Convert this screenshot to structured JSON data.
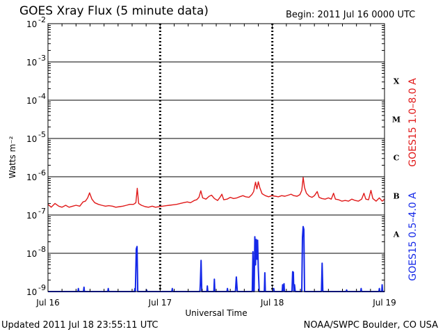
{
  "title": "GOES Xray Flux (5 minute data)",
  "begin": "Begin:  2011 Jul 16 0000 UTC",
  "updated": "Updated 2011 Jul 18 23:55:11 UTC",
  "credit": "NOAA/SWPC Boulder, CO USA",
  "chart_data": {
    "type": "line",
    "title": "GOES Xray Flux (5 minute data)",
    "xlabel": "Universal Time",
    "ylabel": "Watts m⁻²",
    "yscale": "log",
    "ylim": [
      1e-09,
      0.01
    ],
    "xlim": [
      0,
      72
    ],
    "x_unit": "hours since 2011 Jul 16 0000 UTC",
    "x_ticks": [
      {
        "x": 0,
        "label": "Jul 16"
      },
      {
        "x": 24,
        "label": "Jul 17"
      },
      {
        "x": 48,
        "label": "Jul 18"
      },
      {
        "x": 72,
        "label": "Jul 19"
      }
    ],
    "y_ticks": [
      {
        "exp": -9,
        "label": "10",
        "sup": "-9"
      },
      {
        "exp": -8,
        "label": "10",
        "sup": "-8"
      },
      {
        "exp": -7,
        "label": "10",
        "sup": "-7"
      },
      {
        "exp": -6,
        "label": "10",
        "sup": "-6"
      },
      {
        "exp": -5,
        "label": "10",
        "sup": "-5"
      },
      {
        "exp": -4,
        "label": "10",
        "sup": "-4"
      },
      {
        "exp": -3,
        "label": "10",
        "sup": "-3"
      },
      {
        "exp": -2,
        "label": "10",
        "sup": "-2"
      }
    ],
    "flare_classes": [
      {
        "label": "A",
        "exp": -7.5
      },
      {
        "label": "B",
        "exp": -6.5
      },
      {
        "label": "C",
        "exp": -5.5
      },
      {
        "label": "M",
        "exp": -4.5
      },
      {
        "label": "X",
        "exp": -3.5
      }
    ],
    "grid": true,
    "series": [
      {
        "name": "GOES15 1.0–8.0 A",
        "color": "#e01818",
        "points": [
          [
            0,
            1.9e-07
          ],
          [
            0.7,
            1.6e-07
          ],
          [
            1.5,
            2e-07
          ],
          [
            2.3,
            1.7e-07
          ],
          [
            3,
            1.6e-07
          ],
          [
            3.8,
            1.8e-07
          ],
          [
            4.5,
            1.6e-07
          ],
          [
            5.3,
            1.7e-07
          ],
          [
            6,
            1.8e-07
          ],
          [
            6.8,
            1.7e-07
          ],
          [
            7.5,
            2.2e-07
          ],
          [
            8,
            2.3e-07
          ],
          [
            8.5,
            2.8e-07
          ],
          [
            8.9,
            3.8e-07
          ],
          [
            9.4,
            2.6e-07
          ],
          [
            10,
            2.1e-07
          ],
          [
            10.8,
            1.9e-07
          ],
          [
            11.5,
            1.8e-07
          ],
          [
            12.3,
            1.7e-07
          ],
          [
            13,
            1.75e-07
          ],
          [
            13.8,
            1.7e-07
          ],
          [
            14.5,
            1.6e-07
          ],
          [
            15.3,
            1.65e-07
          ],
          [
            16,
            1.7e-07
          ],
          [
            16.8,
            1.8e-07
          ],
          [
            17.5,
            1.9e-07
          ],
          [
            18.3,
            1.9e-07
          ],
          [
            18.8,
            2.1e-07
          ],
          [
            19.1,
            5e-07
          ],
          [
            19.4,
            2e-07
          ],
          [
            20,
            1.8e-07
          ],
          [
            20.8,
            1.65e-07
          ],
          [
            21.5,
            1.6e-07
          ],
          [
            22.3,
            1.7e-07
          ],
          [
            23,
            1.6e-07
          ],
          [
            23.8,
            1.65e-07
          ],
          [
            24.5,
            1.7e-07
          ],
          [
            25.3,
            1.75e-07
          ],
          [
            26,
            1.8e-07
          ],
          [
            26.8,
            1.85e-07
          ],
          [
            27.5,
            1.9e-07
          ],
          [
            28.3,
            2e-07
          ],
          [
            29,
            2.1e-07
          ],
          [
            29.8,
            2.2e-07
          ],
          [
            30.5,
            2.1e-07
          ],
          [
            31.3,
            2.4e-07
          ],
          [
            31.8,
            2.5e-07
          ],
          [
            32.3,
            2.9e-07
          ],
          [
            32.7,
            4.3e-07
          ],
          [
            33.1,
            2.8e-07
          ],
          [
            33.8,
            2.6e-07
          ],
          [
            34.5,
            3.1e-07
          ],
          [
            35,
            3.3e-07
          ],
          [
            35.6,
            2.7e-07
          ],
          [
            36.3,
            2.4e-07
          ],
          [
            36.8,
            2.9e-07
          ],
          [
            37.2,
            3.5e-07
          ],
          [
            37.6,
            2.5e-07
          ],
          [
            38.3,
            2.6e-07
          ],
          [
            39,
            2.9e-07
          ],
          [
            39.7,
            2.7e-07
          ],
          [
            40.4,
            2.8e-07
          ],
          [
            41,
            3e-07
          ],
          [
            41.7,
            3.2e-07
          ],
          [
            42.3,
            3e-07
          ],
          [
            43,
            2.9e-07
          ],
          [
            43.6,
            3.4e-07
          ],
          [
            44,
            4.1e-07
          ],
          [
            44.4,
            7.2e-07
          ],
          [
            44.7,
            4.8e-07
          ],
          [
            45,
            7.4e-07
          ],
          [
            45.3,
            5.3e-07
          ],
          [
            45.8,
            3.6e-07
          ],
          [
            46.5,
            3.2e-07
          ],
          [
            47.2,
            3e-07
          ],
          [
            47.9,
            3.2e-07
          ],
          [
            48.6,
            3.1e-07
          ],
          [
            49.3,
            3e-07
          ],
          [
            50,
            3.2e-07
          ],
          [
            50.7,
            3.1e-07
          ],
          [
            51.4,
            3.3e-07
          ],
          [
            52,
            3.5e-07
          ],
          [
            52.6,
            3.2e-07
          ],
          [
            53.3,
            3.1e-07
          ],
          [
            53.9,
            3.4e-07
          ],
          [
            54.3,
            4.4e-07
          ],
          [
            54.6,
            9.6e-07
          ],
          [
            54.9,
            5.2e-07
          ],
          [
            55.3,
            3.7e-07
          ],
          [
            55.9,
            3.1e-07
          ],
          [
            56.5,
            2.9e-07
          ],
          [
            57,
            3.2e-07
          ],
          [
            57.6,
            4.1e-07
          ],
          [
            58,
            2.9e-07
          ],
          [
            58.6,
            2.7e-07
          ],
          [
            59.3,
            2.6e-07
          ],
          [
            60,
            2.8e-07
          ],
          [
            60.6,
            2.6e-07
          ],
          [
            61.1,
            3.7e-07
          ],
          [
            61.5,
            2.6e-07
          ],
          [
            62.2,
            2.5e-07
          ],
          [
            62.9,
            2.3e-07
          ],
          [
            63.6,
            2.4e-07
          ],
          [
            64.3,
            2.3e-07
          ],
          [
            65,
            2.6e-07
          ],
          [
            65.7,
            2.4e-07
          ],
          [
            66.4,
            2.3e-07
          ],
          [
            67.1,
            2.6e-07
          ],
          [
            67.6,
            3.7e-07
          ],
          [
            68,
            2.6e-07
          ],
          [
            68.6,
            2.5e-07
          ],
          [
            69.1,
            4.4e-07
          ],
          [
            69.5,
            2.7e-07
          ],
          [
            70.2,
            2.3e-07
          ],
          [
            70.9,
            2.8e-07
          ],
          [
            71.5,
            2.3e-07
          ],
          [
            72,
            2.6e-07
          ]
        ]
      },
      {
        "name": "GOES15 0.5–4.0 A",
        "color": "#1428e8",
        "points": [
          [
            0,
            1e-09
          ],
          [
            6.4,
            1e-09
          ],
          [
            6.5,
            1.2e-09
          ],
          [
            6.6,
            1e-09
          ],
          [
            7.6,
            1e-09
          ],
          [
            7.7,
            1.3e-09
          ],
          [
            7.8,
            1e-09
          ],
          [
            12.8,
            1e-09
          ],
          [
            12.9,
            1.2e-09
          ],
          [
            13,
            1e-09
          ],
          [
            18.5,
            1e-09
          ],
          [
            18.6,
            1.2e-09
          ],
          [
            18.7,
            1e-09
          ],
          [
            18.9,
            1.3e-08
          ],
          [
            19.05,
            1.5e-08
          ],
          [
            19.2,
            1e-09
          ],
          [
            21,
            1e-09
          ],
          [
            21.1,
            1.1e-09
          ],
          [
            21.2,
            1e-09
          ],
          [
            26.5,
            1e-09
          ],
          [
            26.6,
            1.2e-09
          ],
          [
            26.7,
            1e-09
          ],
          [
            32.5,
            1e-09
          ],
          [
            32.6,
            1.6e-09
          ],
          [
            32.75,
            6.5e-09
          ],
          [
            32.9,
            1e-09
          ],
          [
            34,
            1e-09
          ],
          [
            34.1,
            1.4e-09
          ],
          [
            34.2,
            1e-09
          ],
          [
            35.5,
            1e-09
          ],
          [
            35.6,
            2.1e-09
          ],
          [
            35.7,
            1e-09
          ],
          [
            38.3,
            1e-09
          ],
          [
            38.4,
            1.2e-09
          ],
          [
            38.5,
            1e-09
          ],
          [
            40.1,
            1e-09
          ],
          [
            40.3,
            2.4e-09
          ],
          [
            40.5,
            1e-09
          ],
          [
            43.7,
            1e-09
          ],
          [
            43.85,
            1.1e-08
          ],
          [
            44,
            1e-09
          ],
          [
            44.1,
            1e-09
          ],
          [
            44.25,
            2.7e-08
          ],
          [
            44.4,
            5e-09
          ],
          [
            44.55,
            2.3e-08
          ],
          [
            44.7,
            7e-09
          ],
          [
            44.85,
            2.2e-08
          ],
          [
            45,
            4e-09
          ],
          [
            45.2,
            1e-09
          ],
          [
            46.3,
            1e-09
          ],
          [
            46.4,
            3.1e-09
          ],
          [
            46.5,
            1e-09
          ],
          [
            48.2,
            1e-09
          ],
          [
            48.3,
            1.2e-09
          ],
          [
            48.4,
            1e-09
          ],
          [
            50.1,
            1e-09
          ],
          [
            50.2,
            1.5e-09
          ],
          [
            50.3,
            1e-09
          ],
          [
            50.5,
            1.6e-09
          ],
          [
            50.6,
            1e-09
          ],
          [
            52.2,
            1e-09
          ],
          [
            52.35,
            3.3e-09
          ],
          [
            52.5,
            3.2e-09
          ],
          [
            52.6,
            1e-09
          ],
          [
            52.75,
            1.5e-09
          ],
          [
            52.9,
            1e-09
          ],
          [
            54.3,
            1e-09
          ],
          [
            54.45,
            2.6e-08
          ],
          [
            54.6,
            5e-08
          ],
          [
            54.75,
            4.2e-08
          ],
          [
            54.9,
            1e-09
          ],
          [
            58.5,
            1e-09
          ],
          [
            58.65,
            5.5e-09
          ],
          [
            58.8,
            1e-09
          ],
          [
            63.8,
            1e-09
          ],
          [
            63.9,
            1.1e-09
          ],
          [
            64,
            1e-09
          ],
          [
            66.9,
            1e-09
          ],
          [
            67,
            1.2e-09
          ],
          [
            67.1,
            1e-09
          ],
          [
            70.8,
            1e-09
          ],
          [
            70.9,
            1.2e-09
          ],
          [
            71,
            1e-09
          ],
          [
            71.4,
            1e-09
          ],
          [
            71.5,
            1.5e-09
          ],
          [
            71.6,
            1e-09
          ],
          [
            72,
            1e-09
          ]
        ]
      }
    ]
  }
}
